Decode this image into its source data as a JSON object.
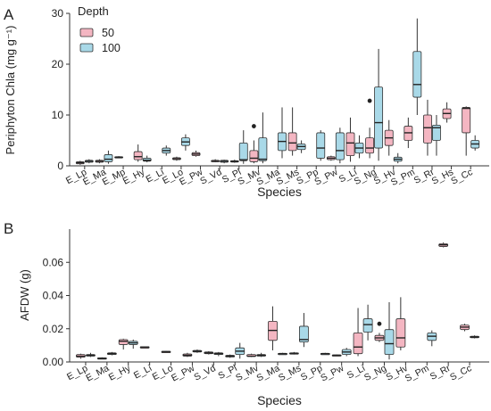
{
  "colors": {
    "depth50": "#f4b6c2",
    "depth100": "#a9d9e8"
  },
  "legend": {
    "title": "Depth",
    "items": [
      {
        "label": "50",
        "color": "#f4b6c2"
      },
      {
        "label": "100",
        "color": "#a9d9e8"
      }
    ]
  },
  "chart_data": [
    {
      "panel_label": "A",
      "type": "box",
      "ylabel": "Periphyton Chla (mg g⁻¹)",
      "xlabel": "Species",
      "ylim": [
        0,
        30
      ],
      "yticks": [
        0,
        10,
        20,
        30
      ],
      "ytick_labels": [
        "0",
        "10",
        "20",
        "30"
      ],
      "categories": [
        "E_Lp",
        "E_Ma",
        "E_Mp",
        "E_Hy",
        "E_Li",
        "E_Lo",
        "E_Pw",
        "S_Vd",
        "S_Pl",
        "S_Mv",
        "S_Ma",
        "S_Ms",
        "S_Pp",
        "S_Pw",
        "S_Li",
        "S_Ng",
        "S_Hv",
        "S_Pm",
        "S_Rr",
        "S_Hs",
        "S_Cc"
      ],
      "series": [
        {
          "name": "50",
          "boxes": [
            {
              "cat": "E_Lp",
              "min": 0.2,
              "q1": 0.4,
              "median": 0.6,
              "q3": 0.8,
              "max": 1.0
            },
            {
              "cat": "E_Ma",
              "min": 0.5,
              "q1": 0.7,
              "median": 0.9,
              "q3": 1.1,
              "max": 1.3
            },
            {
              "cat": "E_Mp",
              "min": 1.5,
              "q1": 1.6,
              "median": 1.7,
              "q3": 1.8,
              "max": 1.9
            },
            {
              "cat": "E_Hy",
              "min": 0.8,
              "q1": 1.2,
              "median": 1.8,
              "q3": 2.8,
              "max": 4.2
            },
            {
              "cat": "E_Lo",
              "min": 1.0,
              "q1": 1.2,
              "median": 1.4,
              "q3": 1.6,
              "max": 1.8
            },
            {
              "cat": "E_Pw",
              "min": 1.8,
              "q1": 2.0,
              "median": 2.3,
              "q3": 2.6,
              "max": 3.0
            },
            {
              "cat": "S_Vd",
              "min": 0.7,
              "q1": 0.8,
              "median": 0.9,
              "q3": 1.1,
              "max": 1.3
            },
            {
              "cat": "S_Pl",
              "min": 0.6,
              "q1": 0.8,
              "median": 0.9,
              "q3": 1.0,
              "max": 1.2
            },
            {
              "cat": "S_Mv",
              "min": 0.5,
              "q1": 0.8,
              "median": 1.5,
              "q3": 3.0,
              "max": 5.0,
              "outliers": [
                7.8
              ]
            },
            {
              "cat": "S_Ms",
              "min": 2.0,
              "q1": 3.0,
              "median": 4.5,
              "q3": 6.5,
              "max": 11.5
            },
            {
              "cat": "S_Pw",
              "min": 1.0,
              "q1": 1.2,
              "median": 1.5,
              "q3": 1.8,
              "max": 2.0
            },
            {
              "cat": "S_Li",
              "min": 0.8,
              "q1": 2.0,
              "median": 4.5,
              "q3": 6.5,
              "max": 9.5
            },
            {
              "cat": "S_Ng",
              "min": 1.5,
              "q1": 2.5,
              "median": 3.5,
              "q3": 5.5,
              "max": 7.5,
              "outliers": [
                12.8
              ]
            },
            {
              "cat": "S_Hv",
              "min": 2.0,
              "q1": 4.0,
              "median": 5.5,
              "q3": 7.0,
              "max": 9.0
            },
            {
              "cat": "S_Pm",
              "min": 3.5,
              "q1": 5.0,
              "median": 6.5,
              "q3": 7.8,
              "max": 9.5
            },
            {
              "cat": "S_Rr",
              "min": 2.0,
              "q1": 4.5,
              "median": 7.5,
              "q3": 10.0,
              "max": 13.0
            },
            {
              "cat": "S_Hs",
              "min": 8.5,
              "q1": 9.3,
              "median": 10.3,
              "q3": 11.2,
              "max": 12.5
            },
            {
              "cat": "S_Cc",
              "min": 2.0,
              "q1": 6.5,
              "median": 11.3,
              "q3": 11.5,
              "max": 11.7
            }
          ]
        },
        {
          "name": "100",
          "boxes": [
            {
              "cat": "E_Lp",
              "min": 0.5,
              "q1": 0.7,
              "median": 0.9,
              "q3": 1.1,
              "max": 1.3
            },
            {
              "cat": "E_Ma",
              "min": 0.4,
              "q1": 0.8,
              "median": 1.3,
              "q3": 2.2,
              "max": 3.0
            },
            {
              "cat": "E_Hy",
              "min": 0.7,
              "q1": 0.9,
              "median": 1.1,
              "q3": 1.5,
              "max": 2.0
            },
            {
              "cat": "E_Li",
              "min": 2.0,
              "q1": 2.5,
              "median": 3.0,
              "q3": 3.5,
              "max": 4.0
            },
            {
              "cat": "E_Lo",
              "min": 3.0,
              "q1": 4.0,
              "median": 4.7,
              "q3": 5.5,
              "max": 6.2
            },
            {
              "cat": "S_Vd",
              "min": 0.5,
              "q1": 0.7,
              "median": 0.9,
              "q3": 1.1,
              "max": 1.2
            },
            {
              "cat": "S_Pl",
              "min": 0.4,
              "q1": 1.0,
              "median": 1.2,
              "q3": 4.5,
              "max": 7.0
            },
            {
              "cat": "S_Mv",
              "min": 0.5,
              "q1": 1.0,
              "median": 1.3,
              "q3": 5.5,
              "max": 10.5
            },
            {
              "cat": "S_Ma",
              "min": 1.5,
              "q1": 3.0,
              "median": 4.8,
              "q3": 6.5,
              "max": 11.5
            },
            {
              "cat": "S_Ms",
              "min": 2.5,
              "q1": 3.2,
              "median": 3.8,
              "q3": 4.3,
              "max": 5.0
            },
            {
              "cat": "S_Pp",
              "min": 1.0,
              "q1": 1.5,
              "median": 3.5,
              "q3": 6.5,
              "max": 7.0
            },
            {
              "cat": "S_Pw",
              "min": 0.5,
              "q1": 1.2,
              "median": 3.0,
              "q3": 6.5,
              "max": 7.5
            },
            {
              "cat": "S_Li",
              "min": 1.5,
              "q1": 2.5,
              "median": 3.5,
              "q3": 4.5,
              "max": 6.0
            },
            {
              "cat": "S_Ng",
              "min": 1.0,
              "q1": 3.5,
              "median": 8.5,
              "q3": 15.5,
              "max": 23.0
            },
            {
              "cat": "S_Hv",
              "min": 0.5,
              "q1": 0.9,
              "median": 1.3,
              "q3": 1.7,
              "max": 2.5
            },
            {
              "cat": "S_Pm",
              "min": 10.0,
              "q1": 13.5,
              "median": 16.0,
              "q3": 22.5,
              "max": 29.0
            },
            {
              "cat": "S_Rr",
              "min": 2.0,
              "q1": 5.0,
              "median": 7.5,
              "q3": 8.0,
              "max": 10.0
            },
            {
              "cat": "S_Cc",
              "min": 3.0,
              "q1": 3.5,
              "median": 4.3,
              "q3": 5.0,
              "max": 6.0
            }
          ]
        }
      ]
    },
    {
      "panel_label": "B",
      "type": "box",
      "ylabel": "AFDW (g)",
      "xlabel": "Species",
      "ylim": [
        0,
        0.08
      ],
      "yticks": [
        0,
        0.02,
        0.04,
        0.06
      ],
      "ytick_labels": [
        "0.00",
        "0.02",
        "0.04",
        "0.06"
      ],
      "categories": [
        "E_Lp",
        "E_Ma",
        "E_Hy",
        "E_Li",
        "E_Lo",
        "E_Pw",
        "S_Vd",
        "S_Pl",
        "S_Mv",
        "S_Ma",
        "S_Ms",
        "S_Pp",
        "S_Pw",
        "S_Li",
        "S_Ng",
        "S_Hv",
        "S_Pm",
        "S_Rr",
        "S_Cc"
      ],
      "series": [
        {
          "name": "50",
          "boxes": [
            {
              "cat": "E_Lp",
              "min": 0.002,
              "q1": 0.0028,
              "median": 0.0035,
              "q3": 0.0045,
              "max": 0.005
            },
            {
              "cat": "E_Ma",
              "min": 0.0018,
              "q1": 0.002,
              "median": 0.0022,
              "q3": 0.0025,
              "max": 0.0028
            },
            {
              "cat": "E_Hy",
              "min": 0.0075,
              "q1": 0.0105,
              "median": 0.0125,
              "q3": 0.0135,
              "max": 0.014
            },
            {
              "cat": "E_Li",
              "min": 0.0088,
              "q1": 0.0089,
              "median": 0.009,
              "q3": 0.0091,
              "max": 0.0092
            },
            {
              "cat": "E_Lo",
              "min": 0.0058,
              "q1": 0.006,
              "median": 0.0062,
              "q3": 0.0064,
              "max": 0.0066
            },
            {
              "cat": "E_Pw",
              "min": 0.003,
              "q1": 0.0035,
              "median": 0.004,
              "q3": 0.0048,
              "max": 0.0055
            },
            {
              "cat": "S_Vd",
              "min": 0.0045,
              "q1": 0.005,
              "median": 0.0055,
              "q3": 0.006,
              "max": 0.0065
            },
            {
              "cat": "S_Pl",
              "min": 0.0025,
              "q1": 0.003,
              "median": 0.0035,
              "q3": 0.004,
              "max": 0.0045
            },
            {
              "cat": "S_Mv",
              "min": 0.003,
              "q1": 0.0033,
              "median": 0.0035,
              "q3": 0.0045,
              "max": 0.005
            },
            {
              "cat": "S_Ma",
              "min": 0.007,
              "q1": 0.013,
              "median": 0.019,
              "q3": 0.0245,
              "max": 0.0335
            },
            {
              "cat": "S_Ms",
              "min": 0.0045,
              "q1": 0.005,
              "median": 0.0052,
              "q3": 0.0055,
              "max": 0.006
            },
            {
              "cat": "S_Pw",
              "min": 0.0035,
              "q1": 0.0038,
              "median": 0.004,
              "q3": 0.0043,
              "max": 0.0045
            },
            {
              "cat": "S_Li",
              "min": 0.0035,
              "q1": 0.005,
              "median": 0.009,
              "q3": 0.0175,
              "max": 0.0325
            },
            {
              "cat": "S_Ng",
              "min": 0.012,
              "q1": 0.013,
              "median": 0.0145,
              "q3": 0.016,
              "max": 0.0175,
              "outliers": [
                0.023
              ]
            },
            {
              "cat": "S_Hv",
              "min": 0.007,
              "q1": 0.009,
              "median": 0.0145,
              "q3": 0.026,
              "max": 0.039
            },
            {
              "cat": "S_Rr",
              "min": 0.069,
              "q1": 0.0695,
              "median": 0.0705,
              "q3": 0.0712,
              "max": 0.072
            },
            {
              "cat": "S_Cc",
              "min": 0.0185,
              "q1": 0.0195,
              "median": 0.021,
              "q3": 0.0222,
              "max": 0.023
            }
          ]
        },
        {
          "name": "100",
          "boxes": [
            {
              "cat": "E_Lp",
              "min": 0.003,
              "q1": 0.0035,
              "median": 0.004,
              "q3": 0.0045,
              "max": 0.0055
            },
            {
              "cat": "E_Ma",
              "min": 0.004,
              "q1": 0.0045,
              "median": 0.005,
              "q3": 0.0055,
              "max": 0.006
            },
            {
              "cat": "E_Hy",
              "min": 0.008,
              "q1": 0.0105,
              "median": 0.0115,
              "q3": 0.0125,
              "max": 0.0135
            },
            {
              "cat": "E_Pw",
              "min": 0.0055,
              "q1": 0.006,
              "median": 0.0065,
              "q3": 0.007,
              "max": 0.0075
            },
            {
              "cat": "S_Vd",
              "min": 0.0035,
              "q1": 0.0045,
              "median": 0.005,
              "q3": 0.0055,
              "max": 0.006
            },
            {
              "cat": "S_Pl",
              "min": 0.002,
              "q1": 0.0045,
              "median": 0.0065,
              "q3": 0.0085,
              "max": 0.0115
            },
            {
              "cat": "S_Mv",
              "min": 0.003,
              "q1": 0.0035,
              "median": 0.004,
              "q3": 0.0045,
              "max": 0.0055
            },
            {
              "cat": "S_Ma",
              "min": 0.0045,
              "q1": 0.0048,
              "median": 0.005,
              "q3": 0.0052,
              "max": 0.0055
            },
            {
              "cat": "S_Ms",
              "min": 0.009,
              "q1": 0.012,
              "median": 0.0135,
              "q3": 0.0215,
              "max": 0.0295
            },
            {
              "cat": "S_Pp",
              "min": 0.0045,
              "q1": 0.0048,
              "median": 0.005,
              "q3": 0.0052,
              "max": 0.0055
            },
            {
              "cat": "S_Pw",
              "min": 0.0035,
              "q1": 0.0045,
              "median": 0.006,
              "q3": 0.0075,
              "max": 0.0085
            },
            {
              "cat": "S_Li",
              "min": 0.013,
              "q1": 0.018,
              "median": 0.0225,
              "q3": 0.026,
              "max": 0.0345
            },
            {
              "cat": "S_Ng",
              "min": 0.0015,
              "q1": 0.0045,
              "median": 0.011,
              "q3": 0.0195,
              "max": 0.036
            },
            {
              "cat": "S_Pm",
              "min": 0.0095,
              "q1": 0.013,
              "median": 0.0155,
              "q3": 0.0175,
              "max": 0.019
            },
            {
              "cat": "S_Cc",
              "min": 0.0142,
              "q1": 0.0146,
              "median": 0.015,
              "q3": 0.0155,
              "max": 0.016
            }
          ]
        }
      ]
    }
  ]
}
